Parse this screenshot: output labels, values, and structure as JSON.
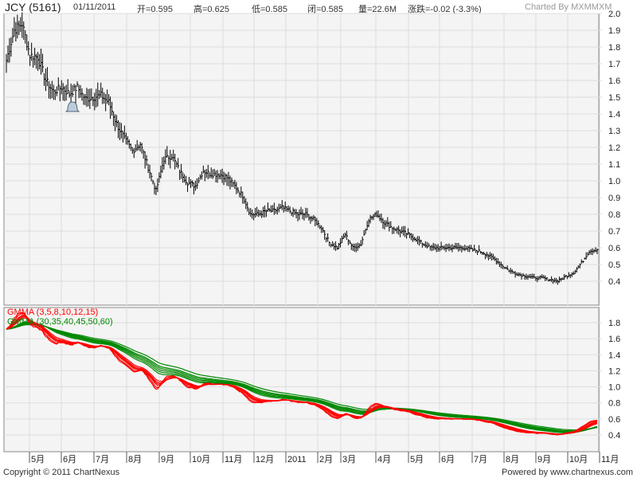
{
  "header": {
    "symbol": "JCY (5161)",
    "date": "01/11/2011",
    "open": "开=0.595",
    "high": "高=0.625",
    "low": "低=0.585",
    "close": "闭=0.585",
    "volume": "量=22.6M",
    "change": "涨跌=-0.02 (-3.3%)",
    "charted_by": "Charted By MXMMXM"
  },
  "footer": {
    "copyright": "Copyright © 2011 ChartNexus",
    "powered": "Powered by www.chartnexus.com"
  },
  "colors": {
    "short": "#ff0000",
    "long": "#008800",
    "bars": "#000000",
    "grid": "#dddddd",
    "bg": "#f4f4f4"
  },
  "chart_data": [
    {
      "type": "bar",
      "subtype": "ohlc",
      "title": "JCY (5161)",
      "ylim": [
        0.3,
        2.0
      ],
      "yticks": [
        "2.0",
        "1.9",
        "1.8",
        "1.7",
        "1.6",
        "1.5",
        "1.4",
        "1.3",
        "1.2",
        "1.1",
        "1.0",
        "0.9",
        "0.8",
        "0.7",
        "0.6",
        "0.5",
        "0.4"
      ],
      "xticks": [
        "5月",
        "6月",
        "7月",
        "8月",
        "9月",
        "10月",
        "11月",
        "12月",
        "2011",
        "2月",
        "3月",
        "4月",
        "5月",
        "6月",
        "7月",
        "8月",
        "9月",
        "10月",
        "11月"
      ],
      "weekly_closes": [
        1.72,
        1.9,
        1.94,
        1.75,
        1.74,
        1.6,
        1.53,
        1.56,
        1.52,
        1.56,
        1.49,
        1.5,
        1.51,
        1.47,
        1.34,
        1.25,
        1.18,
        1.22,
        1.08,
        0.94,
        1.13,
        1.15,
        1.06,
        0.99,
        0.97,
        1.06,
        1.04,
        1.04,
        1.02,
        0.97,
        0.91,
        0.8,
        0.8,
        0.82,
        0.82,
        0.84,
        0.82,
        0.8,
        0.8,
        0.77,
        0.72,
        0.63,
        0.6,
        0.68,
        0.6,
        0.62,
        0.77,
        0.8,
        0.75,
        0.72,
        0.7,
        0.68,
        0.65,
        0.62,
        0.6,
        0.6,
        0.6,
        0.6,
        0.6,
        0.59,
        0.58,
        0.56,
        0.53,
        0.49,
        0.46,
        0.44,
        0.43,
        0.42,
        0.42,
        0.41,
        0.4,
        0.43,
        0.45,
        0.51,
        0.58,
        0.59
      ]
    },
    {
      "type": "line",
      "title": "GMMA",
      "legend": [
        "GMMA (3,5,8,10,12,15)",
        "GMMA (30,35,40,45,50,60)"
      ],
      "short_periods": [
        3,
        5,
        8,
        10,
        12,
        15
      ],
      "long_periods": [
        30,
        35,
        40,
        45,
        50,
        60
      ],
      "ylim": [
        0.3,
        1.9
      ],
      "yticks": [
        "1.8",
        "1.6",
        "1.4",
        "1.2",
        "1.0",
        "0.8",
        "0.6",
        "0.4"
      ]
    }
  ]
}
